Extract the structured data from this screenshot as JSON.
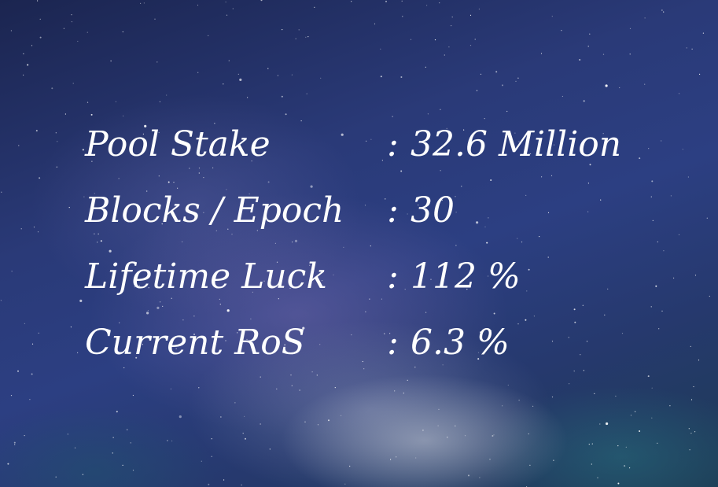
{
  "stats": [
    {
      "label": "Pool Stake",
      "value": "32.6 Million"
    },
    {
      "label": "Blocks / Epoch",
      "value": "30"
    },
    {
      "label": "Lifetime Luck",
      "value": "112 %"
    },
    {
      "label": "Current RoS",
      "value": "6.3 %"
    }
  ],
  "separator": ":"
}
